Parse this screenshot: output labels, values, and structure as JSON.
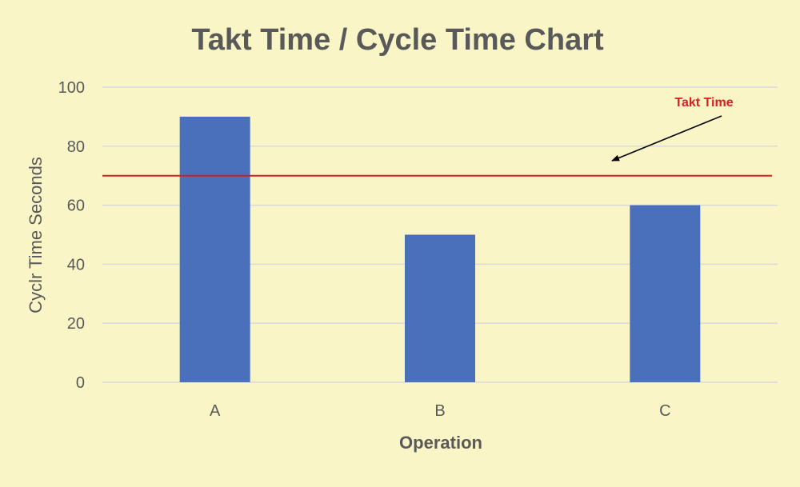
{
  "chart_data": {
    "type": "bar",
    "title": "Takt Time / Cycle Time Chart",
    "xlabel": "Operation",
    "ylabel": "Cyclr Time  Seconds",
    "categories": [
      "A",
      "B",
      "C"
    ],
    "values": [
      90,
      50,
      60
    ],
    "ylim": [
      0,
      100
    ],
    "yticks": [
      0,
      20,
      40,
      60,
      80,
      100
    ],
    "grid": true,
    "reference_line": {
      "label": "Takt Time",
      "value": 70,
      "color": "#d42121"
    },
    "colors": {
      "bar": "#4a70bc",
      "background": "#faf5c6",
      "grid": "#d9d9d9"
    }
  }
}
